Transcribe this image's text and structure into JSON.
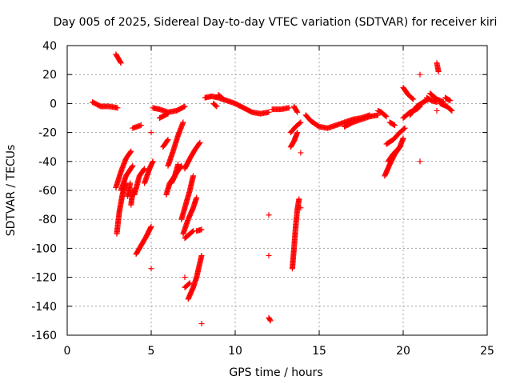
{
  "chart_data": {
    "type": "scatter",
    "title": "Day 005 of 2025, Sidereal Day-to-day VTEC variation (SDTVAR) for receiver kiri",
    "xlabel": "GPS time / hours",
    "ylabel": "SDTVAR / TECUs",
    "xlim": [
      0,
      25
    ],
    "ylim": [
      -160,
      40
    ],
    "xticks": [
      0,
      5,
      10,
      15,
      20,
      25
    ],
    "yticks": [
      -160,
      -140,
      -120,
      -100,
      -80,
      -60,
      -40,
      -20,
      0,
      20,
      40
    ],
    "grid": true,
    "marker": "+",
    "color": "#ff0000",
    "segments": [
      [
        [
          1.5,
          1
        ],
        [
          2.0,
          -2
        ],
        [
          2.5,
          -2
        ],
        [
          3.0,
          -3
        ]
      ],
      [
        [
          2.9,
          34
        ],
        [
          3.2,
          28
        ]
      ],
      [
        [
          2.9,
          -58
        ],
        [
          3.2,
          -47
        ],
        [
          3.5,
          -38
        ],
        [
          3.8,
          -33
        ]
      ],
      [
        [
          2.95,
          -90
        ],
        [
          3.1,
          -75
        ],
        [
          3.3,
          -62
        ],
        [
          3.5,
          -55
        ]
      ],
      [
        [
          3.2,
          -60
        ],
        [
          3.5,
          -50
        ],
        [
          3.9,
          -43
        ]
      ],
      [
        [
          3.6,
          -64
        ],
        [
          3.75,
          -55
        ]
      ],
      [
        [
          3.8,
          -70
        ],
        [
          3.9,
          -60
        ]
      ],
      [
        [
          3.9,
          -17
        ],
        [
          4.4,
          -15
        ]
      ],
      [
        [
          4.0,
          -63
        ],
        [
          4.3,
          -50
        ],
        [
          4.6,
          -45
        ]
      ],
      [
        [
          4.1,
          -104
        ],
        [
          4.4,
          -98
        ],
        [
          4.7,
          -92
        ],
        [
          5.0,
          -85
        ]
      ],
      [
        [
          4.6,
          -55
        ],
        [
          4.9,
          -45
        ],
        [
          5.1,
          -40
        ]
      ],
      [
        [
          5.0,
          -20
        ]
      ],
      [
        [
          5.0,
          -114
        ]
      ],
      [
        [
          5.1,
          -3
        ],
        [
          5.5,
          -4
        ],
        [
          6.0,
          -6
        ],
        [
          6.5,
          -5
        ],
        [
          7.0,
          -2
        ]
      ],
      [
        [
          5.5,
          -10
        ],
        [
          6.0,
          -7
        ]
      ],
      [
        [
          5.7,
          -30
        ],
        [
          6.0,
          -25
        ]
      ],
      [
        [
          5.9,
          -63
        ],
        [
          6.1,
          -55
        ],
        [
          6.4,
          -50
        ],
        [
          6.6,
          -42
        ]
      ],
      [
        [
          6.0,
          -43
        ],
        [
          6.3,
          -33
        ],
        [
          6.6,
          -22
        ],
        [
          6.9,
          -13
        ]
      ],
      [
        [
          6.2,
          -55
        ],
        [
          6.5,
          -48
        ],
        [
          6.8,
          -43
        ]
      ],
      [
        [
          6.8,
          -80
        ],
        [
          7.0,
          -72
        ],
        [
          7.3,
          -60
        ],
        [
          7.5,
          -50
        ]
      ],
      [
        [
          6.9,
          -90
        ],
        [
          7.2,
          -80
        ],
        [
          7.5,
          -72
        ],
        [
          7.7,
          -65
        ]
      ],
      [
        [
          7.0,
          -45
        ],
        [
          7.3,
          -38
        ],
        [
          7.6,
          -32
        ],
        [
          7.9,
          -27
        ]
      ],
      [
        [
          7.0,
          -120
        ]
      ],
      [
        [
          7.0,
          -93
        ],
        [
          7.3,
          -90
        ],
        [
          7.5,
          -88
        ]
      ],
      [
        [
          7.0,
          -127
        ],
        [
          7.3,
          -124
        ]
      ],
      [
        [
          7.2,
          -135
        ],
        [
          7.5,
          -127
        ],
        [
          7.7,
          -120
        ],
        [
          7.9,
          -110
        ],
        [
          8.0,
          -105
        ]
      ],
      [
        [
          7.7,
          -88
        ],
        [
          8.0,
          -87
        ]
      ],
      [
        [
          8.0,
          -152
        ]
      ],
      [
        [
          8.2,
          4
        ],
        [
          8.6,
          5
        ],
        [
          9.0,
          4
        ],
        [
          9.5,
          2
        ],
        [
          10.0,
          0
        ],
        [
          10.5,
          -3
        ],
        [
          11.0,
          -6
        ],
        [
          11.5,
          -7
        ],
        [
          12.0,
          -6
        ]
      ],
      [
        [
          8.7,
          0
        ],
        [
          8.9,
          -2
        ]
      ],
      [
        [
          9.0,
          6
        ],
        [
          9.3,
          3
        ]
      ],
      [
        [
          12.0,
          -77
        ]
      ],
      [
        [
          12.0,
          -105
        ]
      ],
      [
        [
          12.0,
          -148
        ],
        [
          12.1,
          -150
        ]
      ],
      [
        [
          12.2,
          -4
        ],
        [
          12.7,
          -4
        ],
        [
          13.2,
          -3
        ]
      ],
      [
        [
          13.5,
          -2
        ],
        [
          13.7,
          -6
        ]
      ],
      [
        [
          13.3,
          -20
        ],
        [
          13.6,
          -16
        ],
        [
          13.9,
          -13
        ]
      ],
      [
        [
          13.3,
          -30
        ],
        [
          13.5,
          -26
        ],
        [
          13.7,
          -20
        ]
      ],
      [
        [
          13.4,
          -114
        ],
        [
          13.5,
          -100
        ],
        [
          13.6,
          -85
        ],
        [
          13.7,
          -73
        ],
        [
          13.8,
          -66
        ]
      ],
      [
        [
          13.9,
          -34
        ]
      ],
      [
        [
          13.9,
          -72
        ]
      ],
      [
        [
          14.2,
          -8
        ],
        [
          14.5,
          -12
        ],
        [
          15.0,
          -16
        ],
        [
          15.5,
          -17
        ],
        [
          16.0,
          -15
        ],
        [
          16.5,
          -13
        ],
        [
          17.0,
          -11
        ],
        [
          17.5,
          -10
        ],
        [
          18.0,
          -8
        ]
      ],
      [
        [
          16.5,
          -16
        ],
        [
          17.0,
          -13
        ],
        [
          17.5,
          -11
        ],
        [
          18.0,
          -9
        ],
        [
          18.5,
          -8
        ]
      ],
      [
        [
          18.5,
          -5
        ],
        [
          18.7,
          -6
        ],
        [
          19.0,
          -9
        ]
      ],
      [
        [
          19.2,
          -13
        ],
        [
          19.5,
          -15
        ]
      ],
      [
        [
          18.9,
          -50
        ],
        [
          19.2,
          -42
        ],
        [
          19.5,
          -35
        ],
        [
          19.8,
          -30
        ],
        [
          20.0,
          -24
        ]
      ],
      [
        [
          19.0,
          -28
        ],
        [
          19.4,
          -25
        ],
        [
          19.8,
          -20
        ],
        [
          20.1,
          -17
        ]
      ],
      [
        [
          19.1,
          -40
        ],
        [
          19.4,
          -35
        ],
        [
          19.8,
          -30
        ]
      ],
      [
        [
          20.0,
          -10
        ],
        [
          20.4,
          -6
        ],
        [
          20.8,
          -4
        ],
        [
          21.0,
          -2
        ]
      ],
      [
        [
          20.0,
          11
        ],
        [
          20.3,
          6
        ],
        [
          20.6,
          3
        ]
      ],
      [
        [
          20.4,
          -8
        ],
        [
          20.8,
          -2
        ],
        [
          21.2,
          1
        ],
        [
          21.5,
          3
        ]
      ],
      [
        [
          21.0,
          20
        ]
      ],
      [
        [
          21.0,
          -40
        ]
      ],
      [
        [
          21.4,
          4
        ],
        [
          21.7,
          2
        ],
        [
          22.0,
          1
        ]
      ],
      [
        [
          21.6,
          7
        ],
        [
          22.0,
          3
        ],
        [
          22.4,
          1
        ]
      ],
      [
        [
          22.0,
          28
        ],
        [
          22.1,
          22
        ]
      ],
      [
        [
          22.0,
          -5
        ]
      ],
      [
        [
          22.2,
          0
        ],
        [
          22.6,
          -2
        ],
        [
          22.9,
          -5
        ]
      ],
      [
        [
          22.5,
          4
        ],
        [
          22.8,
          2
        ]
      ]
    ]
  }
}
